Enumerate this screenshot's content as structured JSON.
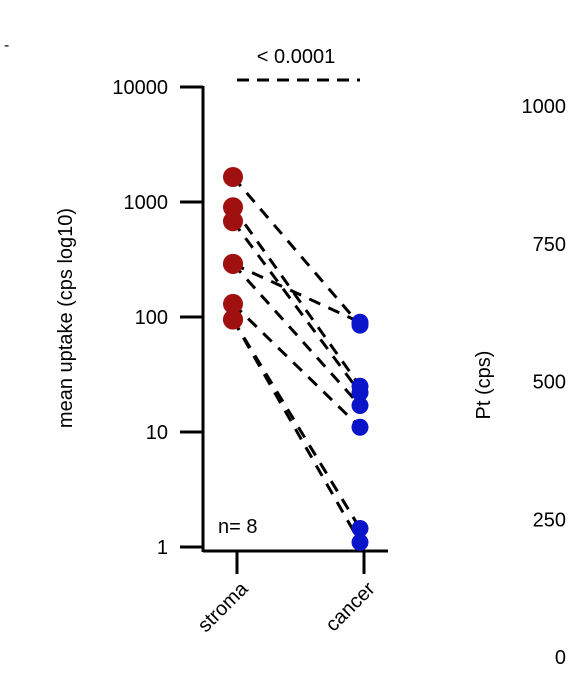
{
  "corner_mark": "-",
  "chart_data": [
    {
      "type": "scatter",
      "subtype": "paired-dot-plot",
      "categories": [
        "stroma",
        "cancer"
      ],
      "ylabel": "mean uptake (cps log10)",
      "y_scale": "log10",
      "ylim": [
        1,
        10000
      ],
      "y_ticks": [
        1,
        10,
        100,
        1000,
        10000
      ],
      "y_tick_labels": [
        "1",
        "10",
        "100",
        "1000",
        "10000"
      ],
      "grid": false,
      "colors": {
        "stroma": "#a01010",
        "cancer": "#0a14c8",
        "lines": "#000000"
      },
      "pairs": [
        {
          "stroma": 1650,
          "cancer": 85
        },
        {
          "stroma": 900,
          "cancer": 25
        },
        {
          "stroma": 680,
          "cancer": 22
        },
        {
          "stroma": 290,
          "cancer": 90
        },
        {
          "stroma": 290,
          "cancer": 17
        },
        {
          "stroma": 130,
          "cancer": 11
        },
        {
          "stroma": 95,
          "cancer": 1.45
        },
        {
          "stroma": 95,
          "cancer": 1.1
        }
      ],
      "annotations": {
        "p_value": "< 0.0001",
        "n": "n= 8"
      }
    },
    {
      "type": "scatter",
      "ylabel": "Pt (cps)",
      "ylim": [
        0,
        1000
      ],
      "y_ticks": [
        0,
        250,
        500,
        750,
        1000
      ],
      "y_tick_labels": [
        "0",
        "250",
        "500",
        "750",
        "1000"
      ]
    }
  ]
}
